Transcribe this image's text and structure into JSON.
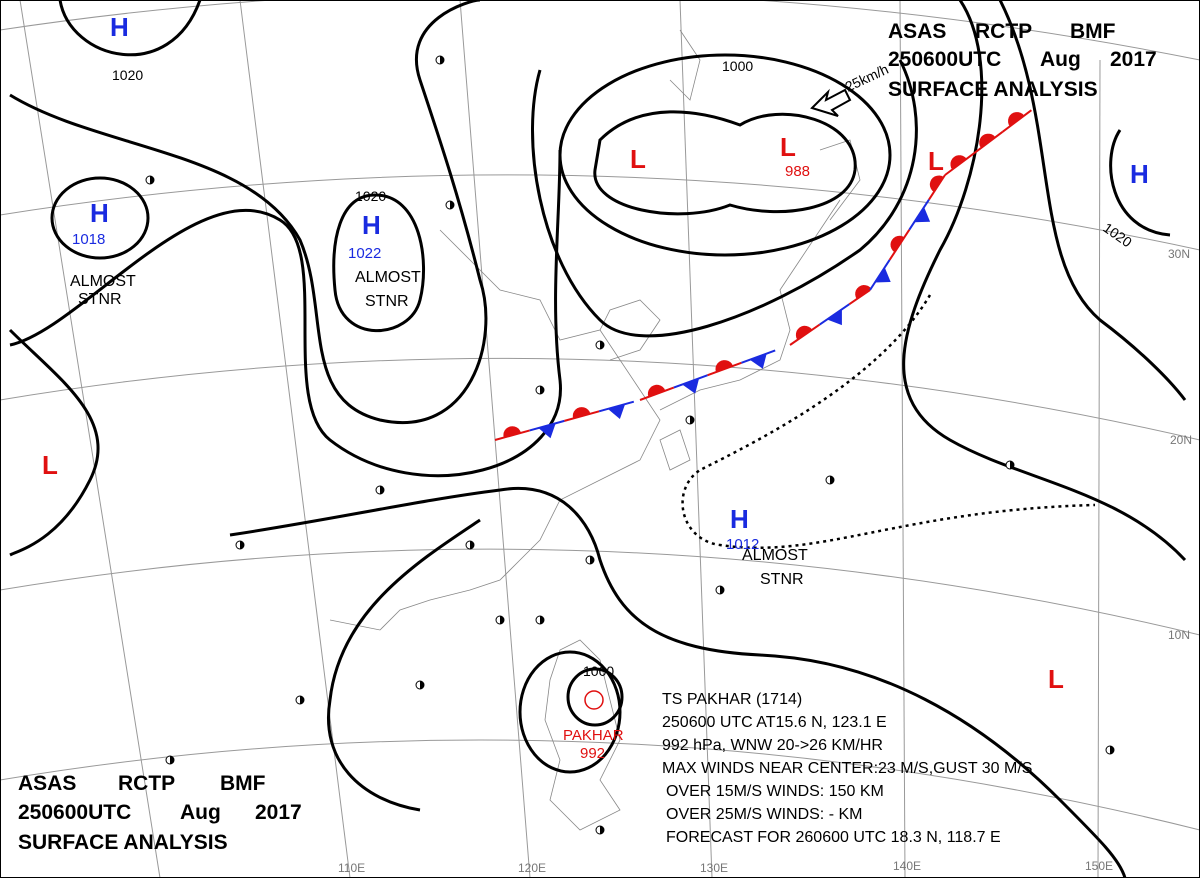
{
  "header_top": {
    "agency": "ASAS",
    "station": "RCTP",
    "code": "BMF",
    "time": "250600UTC",
    "month": "Aug",
    "year": "2017",
    "title": "SURFACE ANALYSIS"
  },
  "header_bottom": {
    "agency": "ASAS",
    "station": "RCTP",
    "code": "BMF",
    "time": "250600UTC",
    "month": "Aug",
    "year": "2017",
    "title": "SURFACE ANALYSIS"
  },
  "pressure_systems": [
    {
      "symbol": "H"
    },
    {
      "symbol": "H",
      "pressure": 1018,
      "note_lines": [
        "ALMOST",
        "STNR"
      ]
    },
    {
      "symbol": "H",
      "pressure": 1022,
      "note_lines": [
        "ALMOST",
        "STNR"
      ]
    },
    {
      "symbol": "L"
    },
    {
      "symbol": "L",
      "pressure": 988
    },
    {
      "symbol": "L"
    },
    {
      "symbol": "H"
    },
    {
      "symbol": "L"
    },
    {
      "symbol": "H",
      "pressure": 1012,
      "note_lines": [
        "ALMOST",
        "STNR"
      ]
    },
    {
      "symbol": "L"
    }
  ],
  "tropical_storm": {
    "name": "PAKHAR",
    "pressure": 992,
    "info_lines": [
      "TS PAKHAR (1714)",
      "250600 UTC AT15.6 N, 123.1 E",
      "992 hPa, WNW 20->26 KM/HR",
      "MAX WINDS NEAR CENTER:23 M/S,GUST 30 M/S",
      "OVER 15M/S WINDS: 150 KM",
      "OVER 25M/S WINDS: - KM",
      "FORECAST FOR 260600 UTC 18.3 N, 118.7 E"
    ]
  },
  "isobar_labels": [
    1020,
    1000,
    1020,
    1020,
    1000
  ],
  "front_motion": "25km/h",
  "lat_labels": [
    "30N",
    "20N",
    "10N"
  ],
  "lon_labels": [
    "110E",
    "120E",
    "130E",
    "140E",
    "150E"
  ]
}
